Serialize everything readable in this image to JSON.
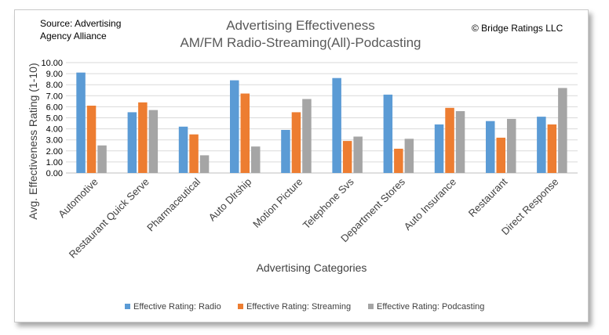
{
  "chart_data": {
    "type": "bar",
    "title": [
      "Advertising Effectiveness",
      "AM/FM Radio-Streaming(All)-Podcasting"
    ],
    "source_note": [
      "Source: Advertising",
      "Agency Alliance"
    ],
    "copyright_note": "© Bridge Ratings LLC",
    "xlabel": "Advertising Categories",
    "ylabel": "Avg. Effectiveness Rating (1-10)",
    "ylim": [
      0,
      10
    ],
    "yticks": [
      "0.00",
      "1.00",
      "2.00",
      "3.00",
      "4.00",
      "5.00",
      "6.00",
      "7.00",
      "8.00",
      "9.00",
      "10.00"
    ],
    "grid": true,
    "legend_position": "bottom",
    "categories": [
      "Automotive",
      "Restaurant Quick Serve",
      "Pharmaceutical",
      "Auto Dlrship",
      "Motion Picture",
      "Telephone Svs",
      "Department Stores",
      "Auto Insurance",
      "Restaurant",
      "Direct Response"
    ],
    "series": [
      {
        "name": "Effective Rating: Radio",
        "color": "#5b9bd5",
        "values": [
          9.1,
          5.5,
          4.2,
          8.4,
          3.9,
          8.6,
          7.1,
          4.4,
          4.7,
          5.1
        ]
      },
      {
        "name": "Effective Rating: Streaming",
        "color": "#ed7d31",
        "values": [
          6.1,
          6.4,
          3.5,
          7.2,
          5.5,
          2.9,
          2.2,
          5.9,
          3.2,
          4.4
        ]
      },
      {
        "name": "Effective Rating: Podcasting",
        "color": "#a5a5a5",
        "values": [
          2.5,
          5.7,
          1.6,
          2.4,
          6.7,
          3.3,
          3.1,
          5.6,
          4.9,
          7.7
        ]
      }
    ]
  }
}
